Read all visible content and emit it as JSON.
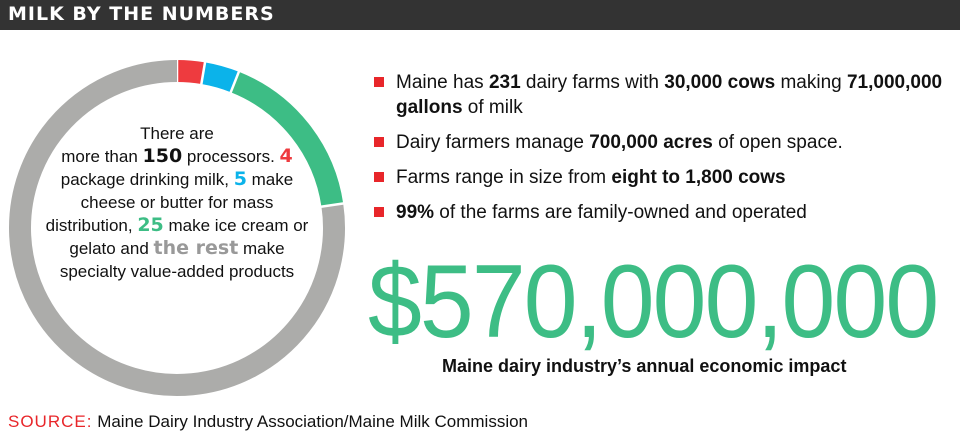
{
  "header": {
    "title": "MILK BY THE NUMBERS"
  },
  "colors": {
    "red": "#e8262a",
    "blue": "#00b0e8",
    "green": "#3dbd85",
    "gray": "#acacaa",
    "header_bg": "#333333"
  },
  "chart_data": {
    "type": "pie",
    "donut": true,
    "total": 150,
    "slices": [
      {
        "value": 4,
        "color": "#ee3b3f"
      },
      {
        "value": 5,
        "color": "#0bb3ea"
      },
      {
        "value": 25,
        "color": "#3dbd85"
      },
      {
        "value": 116,
        "color": "#acacaa"
      }
    ]
  },
  "donut_text": {
    "t1": "There are",
    "t2": "more than ",
    "n150": "150",
    "t3": "processors. ",
    "n4": "4",
    "t4": " package drinking milk, ",
    "n5": "5",
    "t5": " make cheese or butter for mass distribution, ",
    "n25": "25",
    "t6": " make ice cream or gelato and ",
    "rest": "the rest",
    "t7": " make specialty value-added products"
  },
  "facts": [
    {
      "parts": [
        [
          "Maine has ",
          false
        ],
        [
          "231",
          true
        ],
        [
          " dairy farms with ",
          false
        ],
        [
          "30,000 cows",
          true
        ],
        [
          " making ",
          false
        ],
        [
          "71,000,000 gallons",
          true
        ],
        [
          " of milk",
          false
        ]
      ]
    },
    {
      "parts": [
        [
          "Dairy farmers manage ",
          false
        ],
        [
          "700,000 acres",
          true
        ],
        [
          " of open space.",
          false
        ]
      ]
    },
    {
      "parts": [
        [
          "Farms range in size from ",
          false
        ],
        [
          "eight to 1,800 cows",
          true
        ]
      ]
    },
    {
      "parts": [
        [
          "99%",
          true
        ],
        [
          " of the farms are family-owned and operated",
          false
        ]
      ]
    }
  ],
  "impact": {
    "value": "$570,000,000",
    "caption": "Maine dairy industry’s annual economic impact"
  },
  "source": {
    "label": "SOURCE:",
    "text": " Maine Dairy Industry Association/Maine Milk Commission"
  }
}
